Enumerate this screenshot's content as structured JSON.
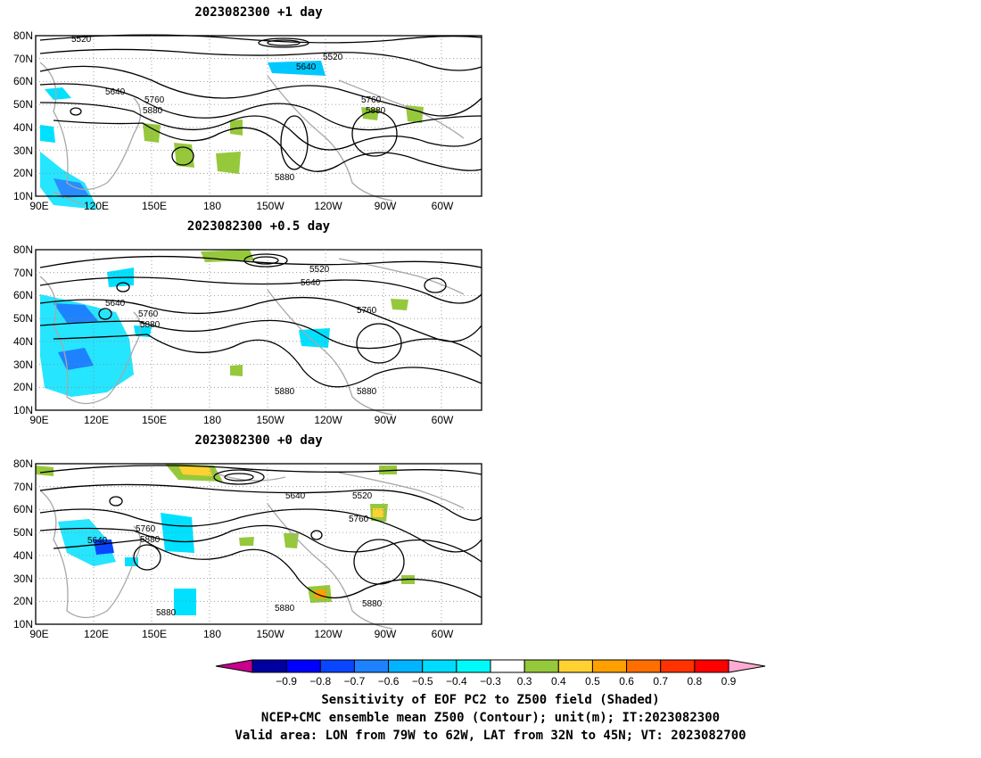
{
  "panels": [
    {
      "title": "2023082300 +1 day",
      "contour_labels": [
        "5520",
        "5520",
        "5640",
        "5640",
        "5760",
        "5760",
        "5880",
        "5880",
        "5880"
      ]
    },
    {
      "title": "2023082300 +0.5 day",
      "contour_labels": [
        "5520",
        "5640",
        "5640",
        "5760",
        "5760",
        "5880",
        "5880",
        "5880"
      ]
    },
    {
      "title": "2023082300 +0 day",
      "contour_labels": [
        "5640",
        "5520",
        "5640",
        "5760",
        "5760",
        "5880",
        "5880",
        "5880",
        "5880"
      ]
    }
  ],
  "axes": {
    "lat_labels": [
      "80N",
      "70N",
      "60N",
      "50N",
      "40N",
      "30N",
      "20N",
      "10N"
    ],
    "lon_labels": [
      "90E",
      "120E",
      "150E",
      "180",
      "150W",
      "120W",
      "90W",
      "60W"
    ]
  },
  "colorbar": {
    "labels": [
      "-0.9",
      "-0.8",
      "-0.7",
      "-0.6",
      "-0.5",
      "-0.4",
      "-0.3",
      "0.3",
      "0.4",
      "0.5",
      "0.6",
      "0.7",
      "0.8",
      "0.9"
    ],
    "left_arrow_color": "#c8008c",
    "colors": [
      "#0000a0",
      "#0000ff",
      "#0a46ff",
      "#1e82ff",
      "#00b4ff",
      "#00dcff",
      "#00fafa",
      "#ffffff",
      "#96c83c",
      "#ffd232",
      "#ffa000",
      "#ff6e00",
      "#ff3200",
      "#ff0000"
    ],
    "right_arrow_color": "#ffaad2"
  },
  "caption": {
    "line1": "Sensitivity of EOF PC2 to Z500 field (Shaded)",
    "line2": "NCEP+CMC ensemble mean Z500 (Contour); unit(m); IT:2023082300",
    "line3": "Valid area: LON from 79W to 62W, LAT from 32N to 45N; VT: 2023082700"
  }
}
